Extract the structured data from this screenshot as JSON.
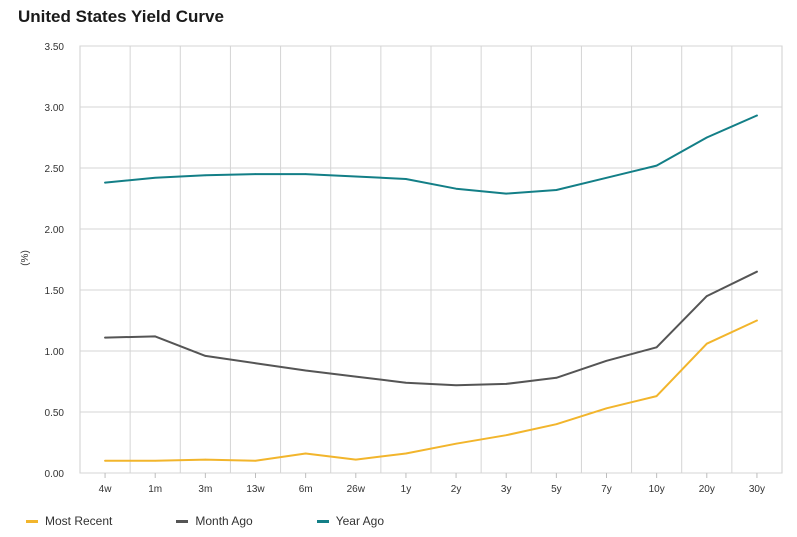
{
  "title": "United States Yield Curve",
  "chart_data": {
    "type": "line",
    "title": "United States Yield Curve",
    "xlabel": "",
    "ylabel": "(%)",
    "ylim": [
      0,
      3.5
    ],
    "yticks": [
      "0.00",
      "0.50",
      "1.00",
      "1.50",
      "2.00",
      "2.50",
      "3.00",
      "3.50"
    ],
    "grid": true,
    "legend": "bottom-left",
    "categories": [
      "4w",
      "1m",
      "3m",
      "13w",
      "6m",
      "26w",
      "1y",
      "2y",
      "3y",
      "5y",
      "7y",
      "10y",
      "20y",
      "30y"
    ],
    "series": [
      {
        "name": "Most Recent",
        "color": "#f2b52c",
        "values": [
          0.1,
          0.1,
          0.11,
          0.1,
          0.16,
          0.11,
          0.16,
          0.24,
          0.31,
          0.4,
          0.53,
          0.63,
          1.06,
          1.25
        ]
      },
      {
        "name": "Month Ago",
        "color": "#555555",
        "values": [
          1.11,
          1.12,
          0.96,
          0.9,
          0.84,
          0.79,
          0.74,
          0.72,
          0.73,
          0.78,
          0.92,
          1.03,
          1.45,
          1.65
        ]
      },
      {
        "name": "Year Ago",
        "color": "#137f87",
        "values": [
          2.38,
          2.42,
          2.44,
          2.45,
          2.45,
          2.43,
          2.41,
          2.33,
          2.29,
          2.32,
          2.42,
          2.52,
          2.75,
          2.93
        ]
      }
    ]
  }
}
